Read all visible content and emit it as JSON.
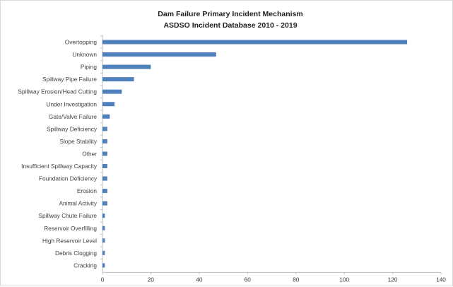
{
  "chart_data": {
    "type": "bar",
    "orientation": "horizontal",
    "title": "Dam Failure Primary Incident Mechanism",
    "subtitle": "ASDSO Incident Database 2010 - 2019",
    "xlabel": "",
    "ylabel": "",
    "xlim": [
      0,
      140
    ],
    "xticks": [
      0,
      20,
      40,
      60,
      80,
      100,
      120,
      140
    ],
    "grid": false,
    "legend": "none",
    "bar_color": "#4f81bd",
    "categories": [
      "Overtopping",
      "Unknown",
      "Piping",
      "Spillway Pipe Failure",
      "Spillway Erosion/Head Cutting",
      "Under Investigation",
      "Gate/Valve Failure",
      "Spillway Deficiency",
      "Slope Stability",
      "Other",
      "Insufficient Spillway Capacity",
      "Foundation Deficiency",
      "Erosion",
      "Animal Activity",
      "Spillway Chute Failure",
      "Reservoir Overfilling",
      "High Reservoir Level",
      "Debris Clogging",
      "Cracking"
    ],
    "values": [
      126,
      47,
      20,
      13,
      8,
      5,
      3,
      2,
      2,
      2,
      2,
      2,
      2,
      2,
      1,
      1,
      1,
      1,
      1
    ]
  }
}
